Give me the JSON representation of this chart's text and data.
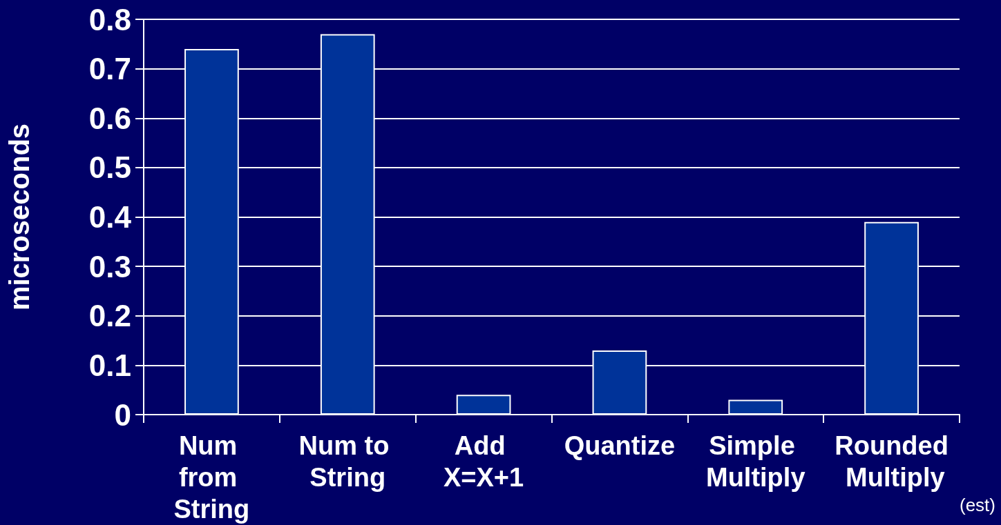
{
  "chart_data": {
    "type": "bar",
    "ylabel": "microseconds",
    "categories": [
      "Num from String",
      "Num to String",
      "Add X=X+1",
      "Quantize",
      "Simple Multiply",
      "Rounded Multiply"
    ],
    "values": [
      0.74,
      0.77,
      0.04,
      0.13,
      0.03,
      0.39
    ],
    "color": "#003399",
    "ylim": [
      0,
      0.8
    ],
    "yticks": [
      0,
      0.1,
      0.2,
      0.3,
      0.4,
      0.5,
      0.6,
      0.7,
      0.8
    ],
    "grid": "y",
    "annotations": [
      "(est)"
    ]
  }
}
